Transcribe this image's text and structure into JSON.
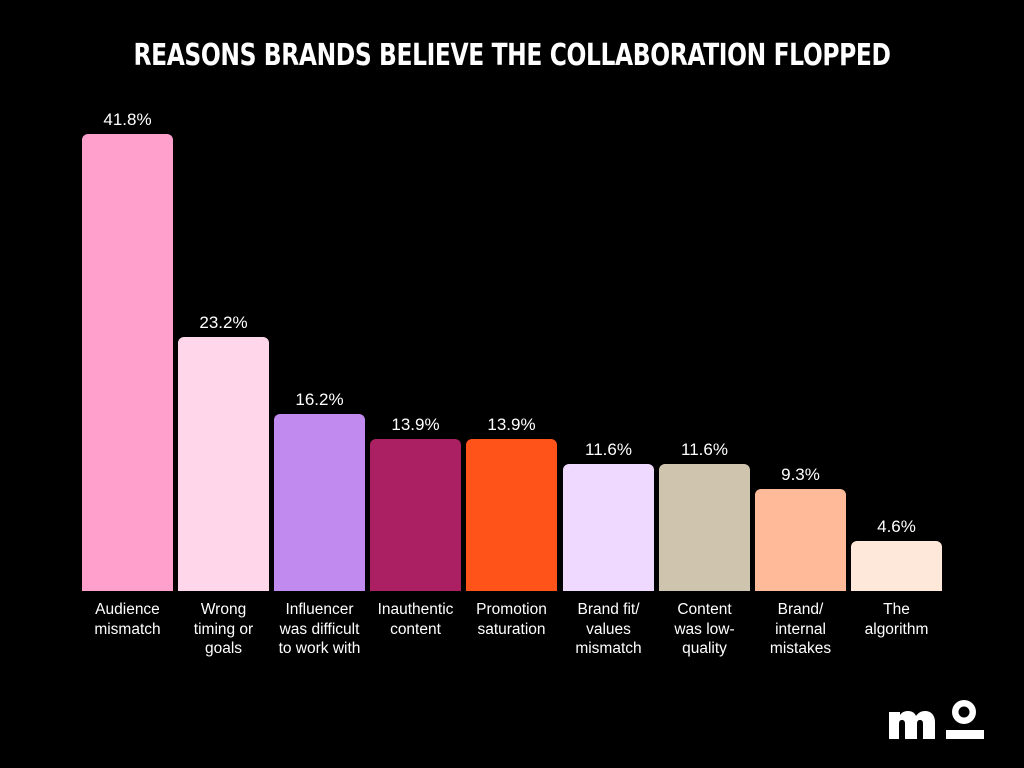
{
  "title": "REASONS BRANDS BELIEVE THE COLLABORATION FLOPPED",
  "logo": {
    "text": "mo",
    "icon": "mo-logo-icon"
  },
  "chart_data": {
    "type": "bar",
    "title": "REASONS BRANDS BELIEVE THE COLLABORATION FLOPPED",
    "xlabel": "",
    "ylabel": "",
    "ylim": [
      0,
      45
    ],
    "grid": false,
    "legend": "none",
    "categories": [
      "Audience mismatch",
      "Wrong timing or goals",
      "Influencer was difficult to work with",
      "Inauthentic content",
      "Promotion saturation",
      "Brand fit/ values mismatch",
      "Content was low-quality",
      "Brand/ internal mistakes",
      "The algorithm"
    ],
    "values": [
      41.8,
      23.2,
      16.2,
      13.9,
      13.9,
      11.6,
      11.6,
      9.3,
      4.6
    ],
    "labels": [
      "41.8%",
      "23.2%",
      "16.2%",
      "13.9%",
      "13.9%",
      "11.6%",
      "11.6%",
      "9.3%",
      "4.6%"
    ],
    "colors": [
      "#FF9FCC",
      "#FFD6EA",
      "#C08AEE",
      "#AA2062",
      "#FF531A",
      "#F0D9FF",
      "#CFC5AF",
      "#FFBB99",
      "#FDE8DA"
    ]
  },
  "bars": [
    {
      "label_lines": [
        "Audience",
        "mismatch"
      ],
      "value_label": "41.8%"
    },
    {
      "label_lines": [
        "Wrong",
        "timing or",
        "goals"
      ],
      "value_label": "23.2%"
    },
    {
      "label_lines": [
        "Influencer",
        "was difficult",
        "to work with"
      ],
      "value_label": "16.2%"
    },
    {
      "label_lines": [
        "Inauthentic",
        "content"
      ],
      "value_label": "13.9%"
    },
    {
      "label_lines": [
        "Promotion",
        "saturation"
      ],
      "value_label": "13.9%"
    },
    {
      "label_lines": [
        "Brand fit/",
        "values",
        "mismatch"
      ],
      "value_label": "11.6%"
    },
    {
      "label_lines": [
        "Content",
        "was low-",
        "quality"
      ],
      "value_label": "11.6%"
    },
    {
      "label_lines": [
        "Brand/",
        "internal",
        "mistakes"
      ],
      "value_label": "9.3%"
    },
    {
      "label_lines": [
        "The",
        "algorithm"
      ],
      "value_label": "4.6%"
    }
  ]
}
